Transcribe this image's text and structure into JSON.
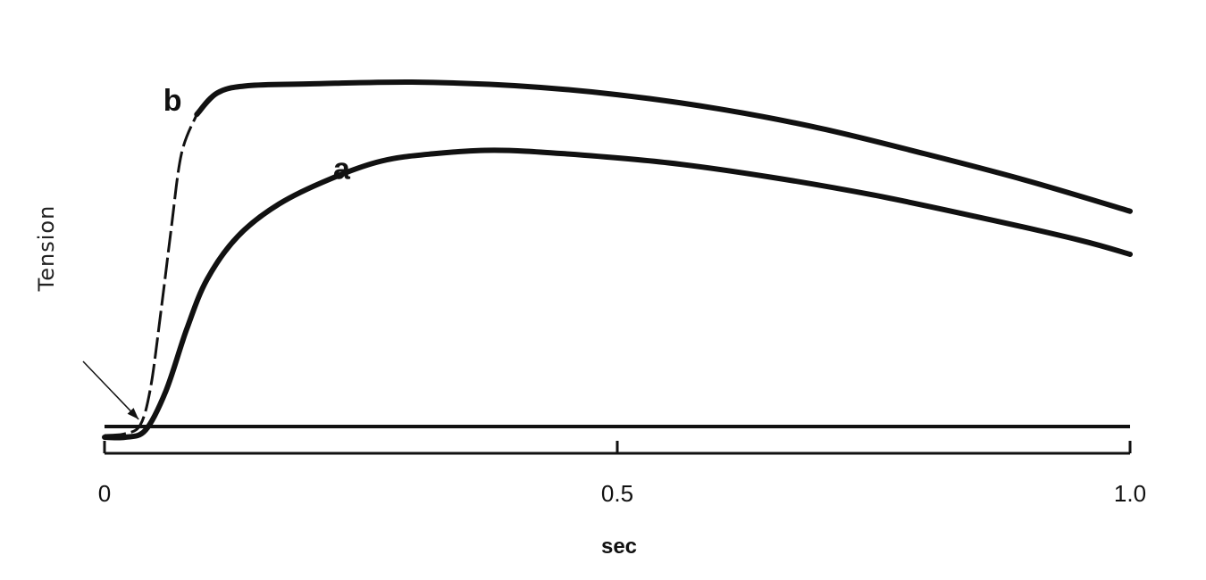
{
  "chart_data": {
    "type": "line",
    "xlabel": "sec",
    "ylabel": "Tension",
    "xlim": [
      0,
      1.0
    ],
    "ylim": [
      0,
      1
    ],
    "x_ticks": [
      {
        "value": 0,
        "label": "0"
      },
      {
        "value": 0.5,
        "label": "0.5"
      },
      {
        "value": 1.0,
        "label": "1.0"
      }
    ],
    "grid": false,
    "legend": "none",
    "series": [
      {
        "name": "b",
        "label_at": [
          0.075,
          0.94
        ],
        "dashed_rise": true,
        "points": [
          [
            0.0,
            0.005
          ],
          [
            0.02,
            0.01
          ],
          [
            0.035,
            0.035
          ],
          [
            0.045,
            0.14
          ],
          [
            0.055,
            0.35
          ],
          [
            0.065,
            0.58
          ],
          [
            0.075,
            0.79
          ],
          [
            0.09,
            0.9
          ],
          [
            0.11,
            0.96
          ],
          [
            0.14,
            0.98
          ],
          [
            0.2,
            0.985
          ],
          [
            0.3,
            0.99
          ],
          [
            0.4,
            0.98
          ],
          [
            0.5,
            0.955
          ],
          [
            0.6,
            0.915
          ],
          [
            0.7,
            0.86
          ],
          [
            0.8,
            0.79
          ],
          [
            0.9,
            0.715
          ],
          [
            1.0,
            0.63
          ]
        ]
      },
      {
        "name": "a",
        "label_at": [
          0.24,
          0.75
        ],
        "dashed_rise": false,
        "points": [
          [
            0.0,
            0.0
          ],
          [
            0.02,
            0.0
          ],
          [
            0.04,
            0.02
          ],
          [
            0.06,
            0.13
          ],
          [
            0.08,
            0.3
          ],
          [
            0.1,
            0.44
          ],
          [
            0.13,
            0.56
          ],
          [
            0.17,
            0.65
          ],
          [
            0.22,
            0.72
          ],
          [
            0.27,
            0.77
          ],
          [
            0.32,
            0.79
          ],
          [
            0.38,
            0.8
          ],
          [
            0.45,
            0.79
          ],
          [
            0.55,
            0.765
          ],
          [
            0.65,
            0.725
          ],
          [
            0.75,
            0.675
          ],
          [
            0.85,
            0.615
          ],
          [
            0.95,
            0.55
          ],
          [
            1.0,
            0.51
          ]
        ]
      }
    ],
    "annotations": [
      {
        "type": "arrow",
        "points_to": [
          0.035,
          0.035
        ]
      }
    ]
  }
}
